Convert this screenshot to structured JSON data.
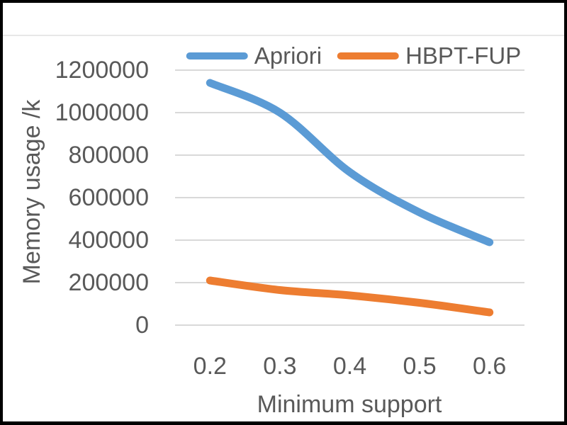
{
  "chart_data": {
    "type": "line",
    "title": "",
    "categories": [
      "0.2",
      "0.3",
      "0.4",
      "0.5",
      "0.6"
    ],
    "series": [
      {
        "name": "Apriori",
        "color": "#5B9BD5",
        "values": [
          1140000,
          1000000,
          720000,
          530000,
          390000
        ]
      },
      {
        "name": "HBPT-FUP",
        "color": "#ED7D31",
        "values": [
          210000,
          165000,
          140000,
          105000,
          60000
        ]
      }
    ],
    "xlabel": "Minimum support",
    "ylabel": "Memory usage /k",
    "ylim": [
      0,
      1200000
    ],
    "ytick_step": 200000,
    "yticks": [
      "0",
      "200000",
      "400000",
      "600000",
      "800000",
      "1000000",
      "1200000"
    ],
    "grid": true,
    "legend_position": "top",
    "line_style": "smooth",
    "colors": {
      "text": "#595959",
      "grid": "#D9D9D9",
      "frame": "#000000",
      "background": "#FFFFFF"
    }
  }
}
